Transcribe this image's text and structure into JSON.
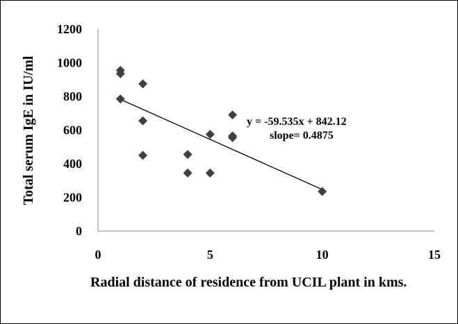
{
  "chart_data": {
    "type": "scatter",
    "title": "",
    "xlabel": "Radial distance of residence from UCIL plant in kms.",
    "ylabel": "Total serum IgE in IU/ml",
    "xlim": [
      0,
      15
    ],
    "ylim": [
      0,
      1200
    ],
    "xticks": [
      "0",
      "5",
      "10",
      "15"
    ],
    "yticks": [
      "0",
      "200",
      "400",
      "600",
      "800",
      "1000",
      "1200"
    ],
    "grid": false,
    "legend": "none",
    "marker_color": "#404040",
    "points": [
      {
        "x": 1,
        "y": 955
      },
      {
        "x": 1,
        "y": 935
      },
      {
        "x": 1,
        "y": 785
      },
      {
        "x": 2,
        "y": 875
      },
      {
        "x": 2,
        "y": 655
      },
      {
        "x": 2,
        "y": 450
      },
      {
        "x": 4,
        "y": 455
      },
      {
        "x": 4,
        "y": 345
      },
      {
        "x": 5,
        "y": 575
      },
      {
        "x": 5,
        "y": 345
      },
      {
        "x": 6,
        "y": 690
      },
      {
        "x": 6,
        "y": 565
      },
      {
        "x": 6,
        "y": 555
      },
      {
        "x": 10,
        "y": 235
      }
    ],
    "trendline": {
      "slope": -59.535,
      "intercept": 842.12,
      "x_range": [
        1,
        10
      ],
      "color": "#000000"
    },
    "annotations": {
      "equation": "y = -59.535x + 842.12",
      "slope_text": "slope= 0.4875"
    }
  }
}
